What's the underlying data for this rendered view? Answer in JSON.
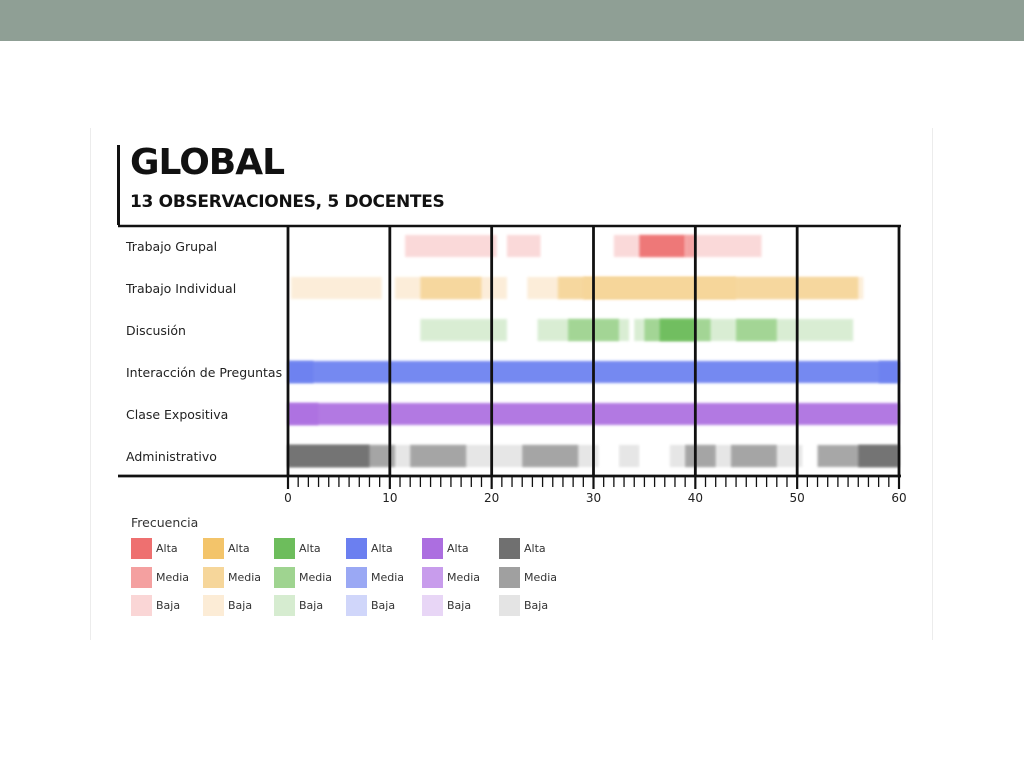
{
  "chart_data": {
    "type": "timeline",
    "title": "GLOBAL",
    "subtitle": "13 OBSERVACIONES, 5 DOCENTES",
    "x_range": [
      0,
      60
    ],
    "x_ticks": [
      0,
      10,
      20,
      30,
      40,
      50,
      60
    ],
    "x_minor_step": 1,
    "categories": [
      "Trabajo Grupal",
      "Trabajo Individual",
      "Discusión",
      "Interacción de Preguntas",
      "Clase Expositiva",
      "Administrativo"
    ],
    "series": [
      {
        "category": "Trabajo Grupal",
        "color_alta": "#ee7070",
        "color_media": "#f4a0a0",
        "color_baja": "#fad6d6",
        "segments": [
          [
            11.5,
            20.5,
            "baja"
          ],
          [
            21.5,
            24.8,
            "baja"
          ],
          [
            32,
            46.5,
            "baja"
          ],
          [
            34.5,
            39,
            "alta"
          ],
          [
            39,
            40,
            "media"
          ]
        ]
      },
      {
        "category": "Trabajo Individual",
        "color_alta": "#f3c46a",
        "color_media": "#f6d69a",
        "color_baja": "#fcecd6",
        "segments": [
          [
            0.3,
            9.2,
            "baja"
          ],
          [
            10.5,
            21.5,
            "baja"
          ],
          [
            13,
            19,
            "media"
          ],
          [
            23.5,
            56.5,
            "baja"
          ],
          [
            26.5,
            56,
            "media"
          ],
          [
            29,
            44,
            "media"
          ]
        ]
      },
      {
        "category": "Discusión",
        "color_alta": "#6dbd5c",
        "color_media": "#9fd490",
        "color_baja": "#d6ecd0",
        "segments": [
          [
            13,
            21.5,
            "baja"
          ],
          [
            24.5,
            33.5,
            "baja"
          ],
          [
            27.5,
            32.5,
            "media"
          ],
          [
            34,
            55.5,
            "baja"
          ],
          [
            35,
            41.5,
            "media"
          ],
          [
            36.5,
            40,
            "alta"
          ],
          [
            44,
            48,
            "media"
          ]
        ]
      },
      {
        "category": "Interacción de Preguntas",
        "color_alta": "#6b7ff0",
        "color_media": "#9aa8f4",
        "color_baja": "#d0d6fa",
        "segments": [
          [
            0,
            60,
            "alta"
          ],
          [
            0,
            2.5,
            "media"
          ],
          [
            58,
            60,
            "media"
          ]
        ]
      },
      {
        "category": "Clase Expositiva",
        "color_alta": "#ac6ee0",
        "color_media": "#c89cec",
        "color_baja": "#e8d6f6",
        "segments": [
          [
            0,
            60,
            "alta"
          ],
          [
            0,
            3,
            "media"
          ]
        ]
      },
      {
        "category": "Administrativo",
        "color_alta": "#707070",
        "color_media": "#a0a0a0",
        "color_baja": "#e4e4e4",
        "segments": [
          [
            0,
            30.5,
            "baja"
          ],
          [
            0,
            10.5,
            "media"
          ],
          [
            0,
            8,
            "alta"
          ],
          [
            12,
            17.5,
            "media"
          ],
          [
            23,
            28.5,
            "media"
          ],
          [
            32.5,
            34.5,
            "baja"
          ],
          [
            37.5,
            50.5,
            "baja"
          ],
          [
            39,
            42,
            "media"
          ],
          [
            43.5,
            48,
            "media"
          ],
          [
            52,
            60,
            "media"
          ],
          [
            56,
            60,
            "alta"
          ]
        ]
      }
    ],
    "legend": {
      "title": "Frecuencia",
      "levels": [
        "Alta",
        "Media",
        "Baja"
      ],
      "columns": [
        [
          "#ee7070",
          "#f4a0a0",
          "#fad6d6"
        ],
        [
          "#f3c46a",
          "#f6d69a",
          "#fcecd6"
        ],
        [
          "#6dbd5c",
          "#9fd490",
          "#d6ecd0"
        ],
        [
          "#6b7ff0",
          "#9aa8f4",
          "#d0d6fa"
        ],
        [
          "#ac6ee0",
          "#c89cec",
          "#e8d6f6"
        ],
        [
          "#707070",
          "#a0a0a0",
          "#e4e4e4"
        ]
      ]
    }
  }
}
